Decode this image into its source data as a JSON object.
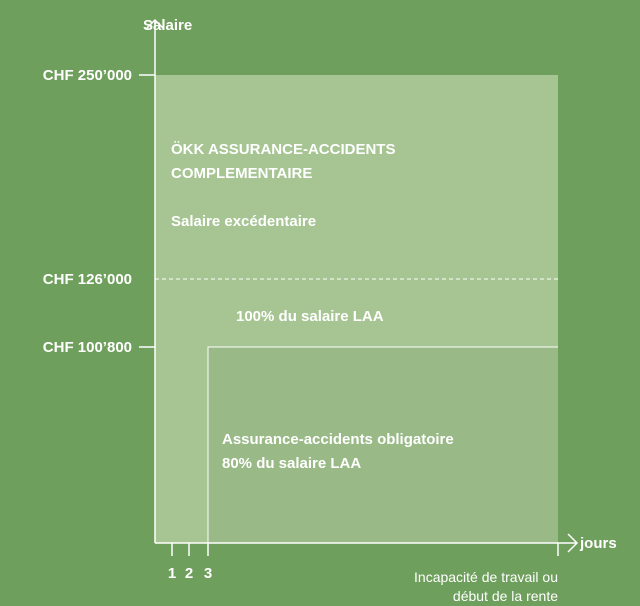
{
  "axes": {
    "y_title": "Salaire",
    "x_title": "jours",
    "y_labels": [
      "CHF 250’000",
      "CHF 126’000",
      "CHF 100’800"
    ],
    "x_labels": [
      "1",
      "2",
      "3"
    ],
    "x_end_label": [
      "Incapacité de travail ou",
      "début de la rente"
    ]
  },
  "regions": {
    "top": {
      "title": [
        "ÖKK ASSURANCE-ACCIDENTS",
        "COMPLEMENTAIRE"
      ],
      "subtitle": "Salaire excédentaire"
    },
    "middle": {
      "label": "100% du salaire LAA"
    },
    "bottom": {
      "label": [
        "Assurance-accidents obligatoire",
        "80% du salaire LAA"
      ]
    }
  }
}
